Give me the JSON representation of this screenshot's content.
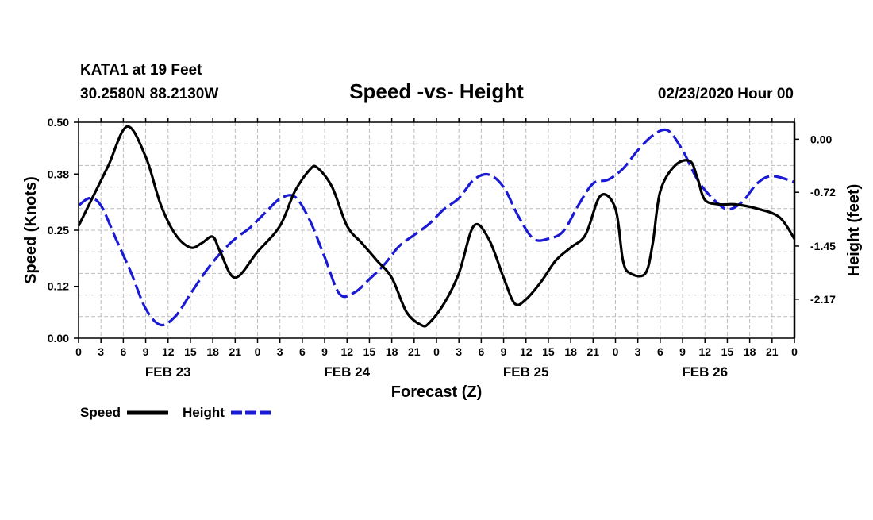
{
  "header": {
    "station": "KATA1 at 19 Feet",
    "coords": "30.2580N 88.2130W",
    "title": "Speed -vs- Height",
    "datetime": "02/23/2020 Hour 00"
  },
  "chart_data": {
    "type": "line",
    "title": "Speed -vs- Height",
    "xlabel": "Forecast (Z)",
    "ylabel_left": "Speed (Knots)",
    "ylabel_right": "Height (feet)",
    "x_range_hours": [
      0,
      96
    ],
    "x_tick_labels": [
      "0",
      "3",
      "6",
      "9",
      "12",
      "15",
      "18",
      "21",
      "0",
      "3",
      "6",
      "9",
      "12",
      "15",
      "18",
      "21",
      "0",
      "3",
      "6",
      "9",
      "12",
      "15",
      "18",
      "21",
      "0",
      "3",
      "6",
      "9",
      "12",
      "15",
      "18",
      "21",
      "0"
    ],
    "date_labels": [
      {
        "label": "FEB 23",
        "hour": 12
      },
      {
        "label": "FEB 24",
        "hour": 36
      },
      {
        "label": "FEB 25",
        "hour": 60
      },
      {
        "label": "FEB 26",
        "hour": 84
      }
    ],
    "y_left": {
      "range": [
        0,
        0.5
      ],
      "ticks": [
        0.0,
        0.12,
        0.25,
        0.38,
        0.5
      ],
      "tick_labels": [
        "0.00",
        "0.12",
        "0.25",
        "0.38",
        "0.50"
      ]
    },
    "y_right": {
      "range": [
        -2.7,
        0.23
      ],
      "ticks": [
        0.0,
        -0.72,
        -1.45,
        -2.17
      ],
      "tick_labels": [
        "0.00",
        "-0.72",
        "-1.45",
        "-2.17"
      ]
    },
    "grid": true,
    "series": [
      {
        "name": "Speed",
        "axis": "left",
        "color": "#000000",
        "style": "solid",
        "hours": [
          0,
          2,
          4,
          6.5,
          9,
          11,
          13,
          15,
          16.5,
          18,
          19,
          21,
          24,
          27,
          29,
          31,
          32,
          34,
          36,
          38,
          40,
          42,
          44,
          46,
          47,
          49,
          51,
          53,
          55,
          57,
          58.5,
          60,
          62,
          64,
          66,
          68,
          70,
          72,
          73,
          74,
          76,
          77,
          78,
          80,
          82,
          83,
          84,
          86,
          88,
          91,
          94,
          96
        ],
        "values": [
          0.26,
          0.33,
          0.4,
          0.49,
          0.42,
          0.31,
          0.24,
          0.21,
          0.22,
          0.235,
          0.2,
          0.14,
          0.2,
          0.26,
          0.34,
          0.39,
          0.395,
          0.35,
          0.26,
          0.22,
          0.18,
          0.14,
          0.06,
          0.03,
          0.035,
          0.08,
          0.15,
          0.26,
          0.23,
          0.14,
          0.08,
          0.09,
          0.13,
          0.18,
          0.21,
          0.24,
          0.33,
          0.3,
          0.18,
          0.15,
          0.15,
          0.22,
          0.34,
          0.4,
          0.41,
          0.37,
          0.32,
          0.31,
          0.31,
          0.3,
          0.28,
          0.23
        ]
      },
      {
        "name": "Height",
        "axis": "right",
        "color": "#1a1ad4",
        "style": "dashed",
        "hours": [
          0,
          1.5,
          3,
          5,
          7,
          9,
          11,
          13,
          15,
          17,
          19,
          21,
          23,
          25,
          27,
          29,
          31,
          33,
          35,
          37,
          39,
          41,
          43,
          45,
          47,
          49,
          51,
          53,
          55,
          57,
          59,
          61,
          63,
          65,
          67,
          69,
          71,
          73,
          75,
          77,
          79,
          81,
          83,
          85,
          87,
          89,
          91,
          93,
          96
        ],
        "values": [
          -0.9,
          -0.8,
          -0.9,
          -1.35,
          -1.8,
          -2.3,
          -2.52,
          -2.4,
          -2.1,
          -1.8,
          -1.55,
          -1.35,
          -1.2,
          -1.0,
          -0.81,
          -0.78,
          -1.1,
          -1.6,
          -2.1,
          -2.08,
          -1.9,
          -1.7,
          -1.45,
          -1.3,
          -1.15,
          -0.95,
          -0.8,
          -0.55,
          -0.48,
          -0.65,
          -1.05,
          -1.35,
          -1.35,
          -1.25,
          -0.9,
          -0.6,
          -0.55,
          -0.4,
          -0.15,
          0.05,
          0.12,
          -0.15,
          -0.55,
          -0.8,
          -0.95,
          -0.85,
          -0.6,
          -0.5,
          -0.58
        ]
      }
    ],
    "legend": {
      "position": "bottom-left",
      "entries": [
        {
          "label": "Speed",
          "color": "#000000",
          "style": "solid"
        },
        {
          "label": "Height",
          "color": "#1a1ad4",
          "style": "dashed"
        }
      ]
    }
  }
}
